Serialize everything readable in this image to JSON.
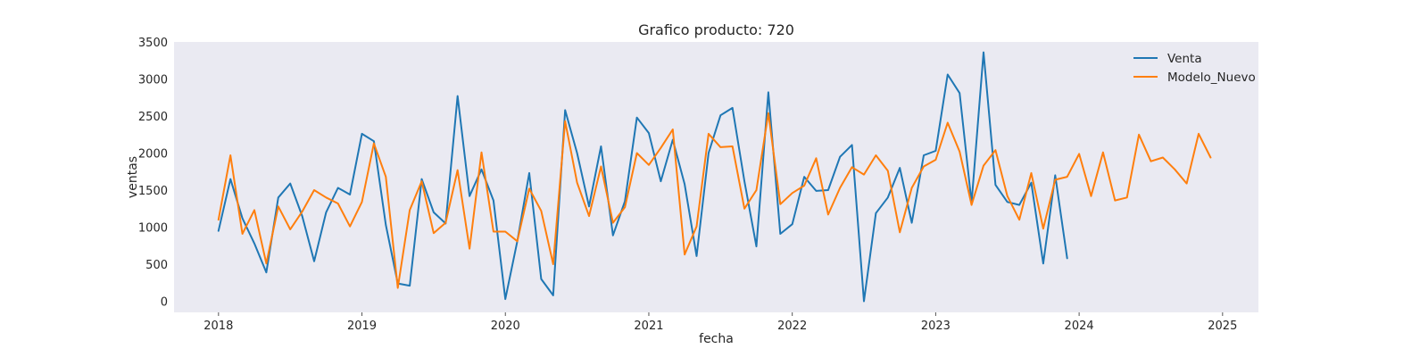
{
  "chart_data": {
    "type": "line",
    "title": "Grafico producto: 720",
    "xlabel": "fecha",
    "ylabel": "ventas",
    "xlim": [
      2017.69,
      2025.25
    ],
    "ylim": [
      -150,
      3500
    ],
    "x_ticks": [
      2018,
      2019,
      2020,
      2021,
      2022,
      2023,
      2024,
      2025
    ],
    "x_tick_labels": [
      "2018",
      "2019",
      "2020",
      "2021",
      "2022",
      "2023",
      "2024",
      "2025"
    ],
    "y_ticks": [
      0,
      500,
      1000,
      1500,
      2000,
      2500,
      3000,
      3500
    ],
    "y_tick_labels": [
      "0",
      "500",
      "1000",
      "1500",
      "2000",
      "2500",
      "3000",
      "3500"
    ],
    "grid": false,
    "legend_position": "upper-right",
    "background": "#eaeaf2",
    "series": [
      {
        "name": "Venta",
        "color": "#1f77b4",
        "start_year": 2018,
        "start_month": 1,
        "values": [
          950,
          1650,
          1120,
          780,
          390,
          1400,
          1590,
          1150,
          540,
          1200,
          1530,
          1440,
          2260,
          2160,
          1030,
          240,
          210,
          1650,
          1200,
          1050,
          2770,
          1420,
          1780,
          1360,
          30,
          810,
          1730,
          300,
          80,
          2580,
          2000,
          1280,
          2090,
          890,
          1350,
          2480,
          2270,
          1620,
          2180,
          1580,
          610,
          2000,
          2510,
          2610,
          1620,
          740,
          2820,
          910,
          1040,
          1680,
          1490,
          1500,
          1950,
          2110,
          0,
          1190,
          1400,
          1800,
          1060,
          1970,
          2030,
          3060,
          2810,
          1330,
          3360,
          1570,
          1340,
          1300,
          1600,
          510,
          1700,
          580
        ]
      },
      {
        "name": "Modelo_Nuevo",
        "color": "#ff7f0e",
        "start_year": 2018,
        "start_month": 1,
        "values": [
          1100,
          1970,
          910,
          1230,
          510,
          1280,
          970,
          1210,
          1500,
          1400,
          1320,
          1010,
          1340,
          2130,
          1680,
          180,
          1230,
          1620,
          920,
          1060,
          1770,
          710,
          2010,
          940,
          940,
          810,
          1520,
          1220,
          500,
          2430,
          1600,
          1150,
          1820,
          1060,
          1270,
          2000,
          1840,
          2070,
          2320,
          630,
          1010,
          2260,
          2080,
          2090,
          1250,
          1500,
          2540,
          1310,
          1460,
          1560,
          1930,
          1170,
          1530,
          1810,
          1710,
          1970,
          1760,
          930,
          1530,
          1820,
          1910,
          2410,
          2020,
          1300,
          1830,
          2040,
          1420,
          1100,
          1730,
          980,
          1640,
          1680,
          1990,
          1420,
          2010,
          1360,
          1400,
          2250,
          1890,
          1940,
          1780,
          1590,
          2260,
          1940
        ]
      }
    ]
  }
}
